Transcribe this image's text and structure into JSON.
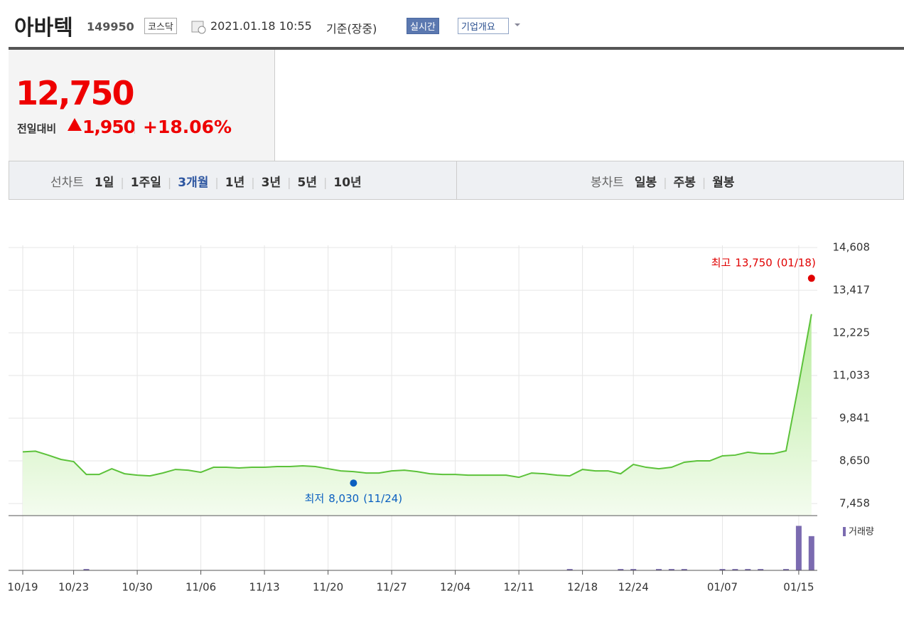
{
  "header": {
    "name": "아바텍",
    "code": "149950",
    "market": "코스닥",
    "datetime": "2021.01.18 10:55",
    "basis": "기준(장중)",
    "realtime": "실시간",
    "company": "기업개요"
  },
  "price": {
    "current": "12,750",
    "change_label": "전일대비",
    "change": "1,950",
    "rate": "+18.06%"
  },
  "tabs": {
    "line_label": "선차트",
    "line": [
      "1일",
      "1주일",
      "3개월",
      "1년",
      "3년",
      "5년",
      "10년"
    ],
    "candle_label": "봉차트",
    "candle": [
      "일봉",
      "주봉",
      "월봉"
    ]
  },
  "chart_data": {
    "type": "line",
    "categories": [
      "10/19",
      null,
      null,
      null,
      "10/23",
      null,
      null,
      null,
      null,
      "10/30",
      null,
      null,
      null,
      null,
      "11/06",
      null,
      null,
      null,
      null,
      "11/13",
      null,
      null,
      null,
      null,
      "11/20",
      null,
      null,
      null,
      null,
      "11/27",
      null,
      null,
      null,
      null,
      "12/04",
      null,
      null,
      null,
      null,
      "12/11",
      null,
      null,
      null,
      null,
      "12/18",
      null,
      null,
      null,
      "12/24",
      null,
      null,
      null,
      null,
      null,
      null,
      "01/07",
      null,
      null,
      null,
      null,
      null,
      "01/15",
      null
    ],
    "series": [
      {
        "color": "#5cc23a",
        "values": [
          8900,
          8920,
          8810,
          8690,
          8630,
          8270,
          8270,
          8430,
          8290,
          8250,
          8230,
          8310,
          8410,
          8390,
          8330,
          8470,
          8470,
          8450,
          8470,
          8470,
          8490,
          8490,
          8510,
          8490,
          8430,
          8370,
          8350,
          8310,
          8310,
          8370,
          8390,
          8350,
          8290,
          8270,
          8270,
          8250,
          8250,
          8250,
          8250,
          8190,
          8310,
          8290,
          8250,
          8230,
          8410,
          8370,
          8370,
          8290,
          8550,
          8470,
          8430,
          8470,
          8610,
          8650,
          8650,
          8790,
          8810,
          8890,
          8850,
          8850,
          8930,
          10800,
          12750
        ]
      },
      {
        "name": "거래량",
        "color": "#7b6bb0",
        "axis": "y2",
        "values": [
          80000,
          80000,
          80000,
          80000,
          80000,
          400000,
          80000,
          80000,
          80000,
          80000,
          80000,
          80000,
          80000,
          80000,
          80000,
          80000,
          80000,
          80000,
          80000,
          80000,
          80000,
          80000,
          80000,
          80000,
          80000,
          80000,
          80000,
          80000,
          80000,
          80000,
          80000,
          80000,
          80000,
          80000,
          80000,
          80000,
          80000,
          80000,
          80000,
          80000,
          80000,
          80000,
          80000,
          400000,
          80000,
          80000,
          80000,
          400000,
          400000,
          80000,
          400000,
          400000,
          400000,
          80000,
          80000,
          400000,
          400000,
          400000,
          400000,
          80000,
          400000,
          13000000,
          10000000
        ]
      }
    ],
    "ylim": [
      7120,
      14670
    ],
    "yticks": [
      {
        "value": 7458,
        "label": "7,458"
      },
      {
        "value": 8650,
        "label": "8,650"
      },
      {
        "value": 9841,
        "label": "9,841"
      },
      {
        "value": 11033,
        "label": "11,033"
      },
      {
        "value": 12225,
        "label": "12,225"
      },
      {
        "value": 13417,
        "label": "13,417"
      },
      {
        "value": 14608,
        "label": "14,608"
      }
    ],
    "y2lim": [
      0,
      13500000
    ],
    "grid": true,
    "annotations": [
      {
        "text": "최고",
        "value": 13750,
        "value_label": "13,750",
        "date": "(01/18)",
        "index": 62,
        "color": "#e00000"
      },
      {
        "text": "최저",
        "value": 8030,
        "value_label": "8,030",
        "date": "(11/24)",
        "index": 26,
        "color": "#0a5fc0"
      }
    ]
  }
}
